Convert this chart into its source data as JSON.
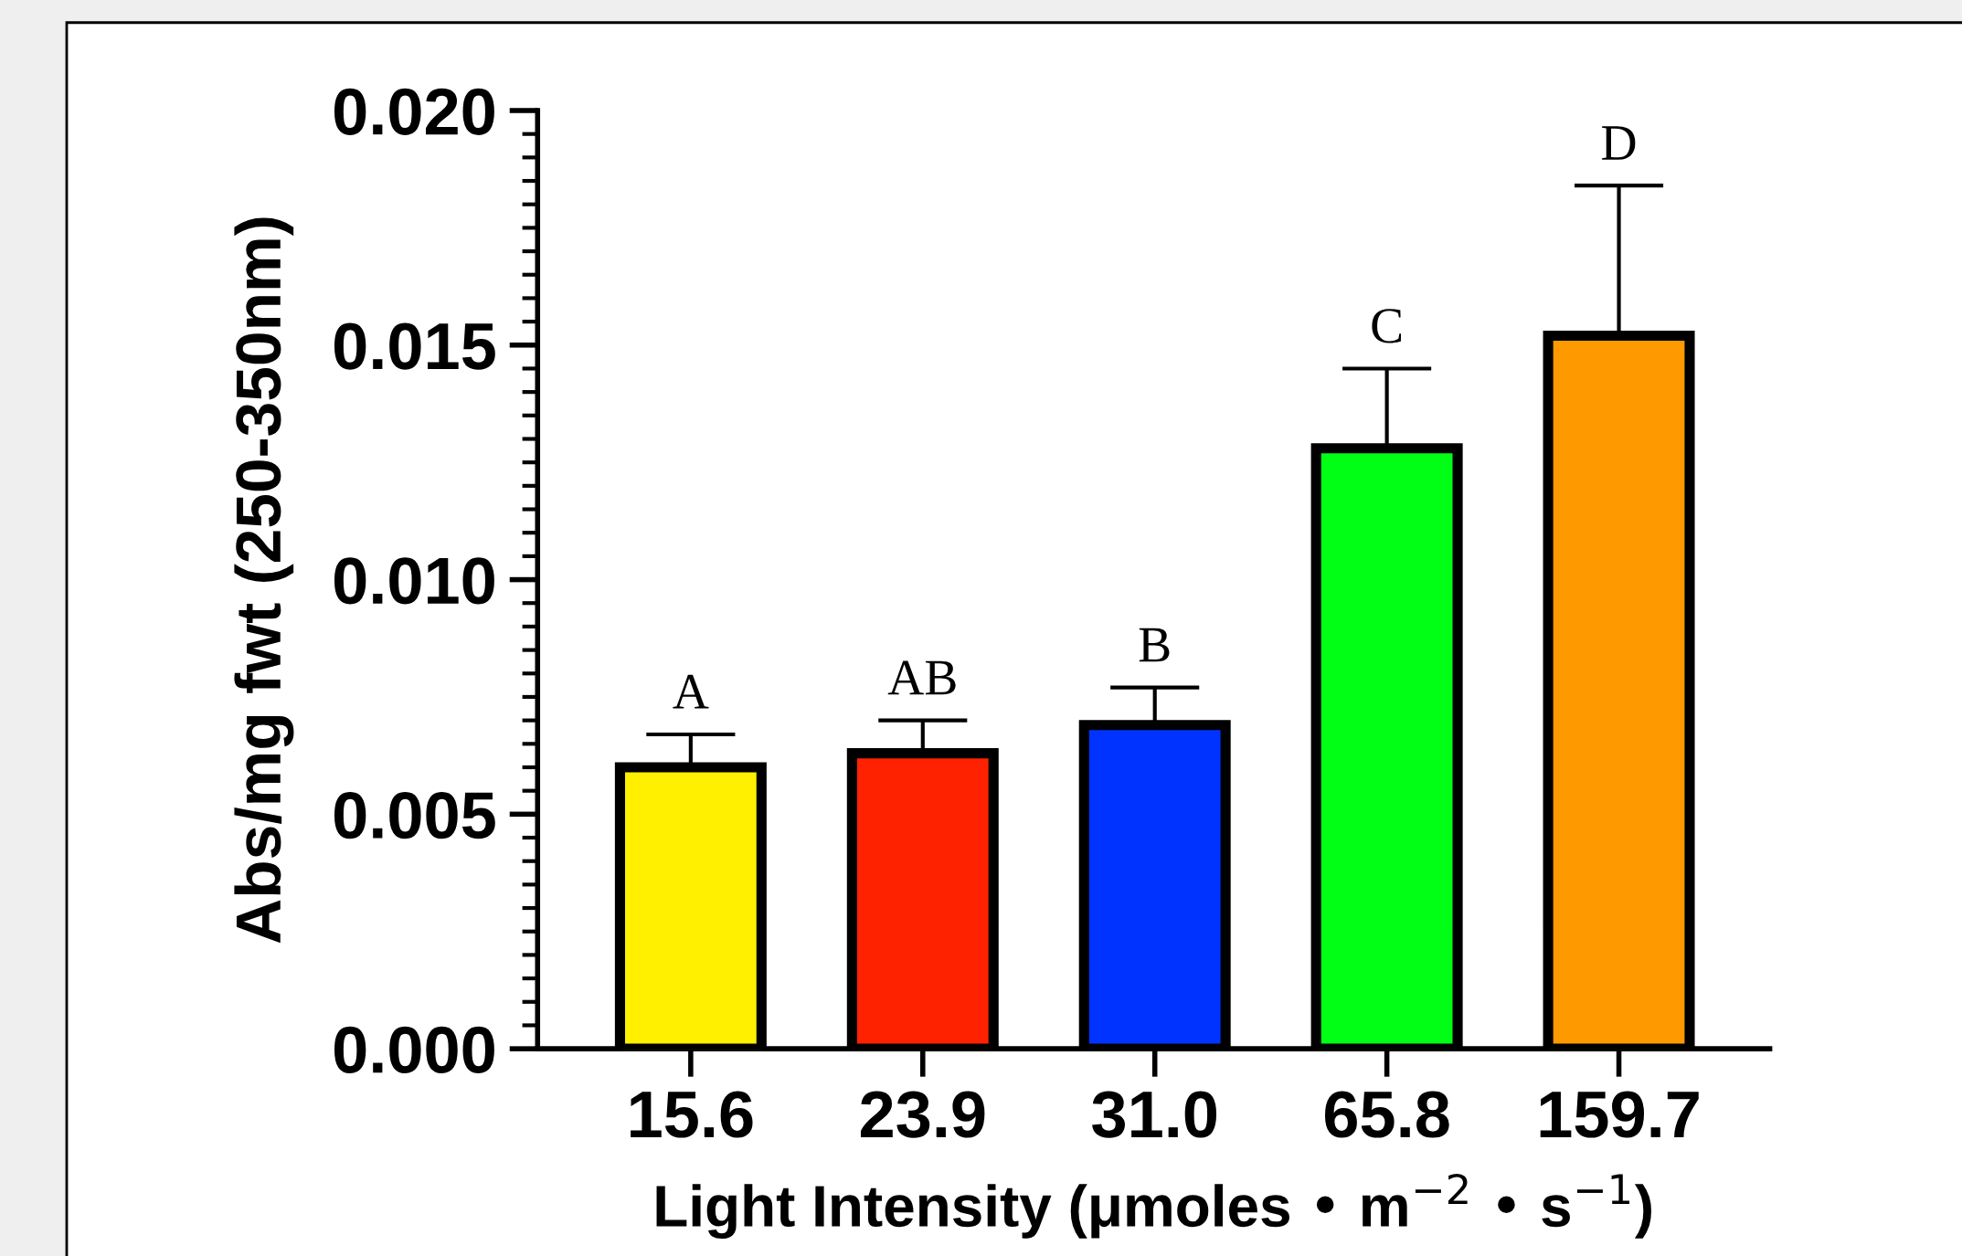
{
  "chart_data": {
    "type": "bar",
    "xlabel": "Light Intensity (μmoles • m$^{−2}$ • s$^{−1}$)",
    "ylabel": "Abs/mg fwt (250-350nm)",
    "categories": [
      "15.6",
      "23.9",
      "31.0",
      "65.8",
      "159.7"
    ],
    "values": [
      0.006,
      0.0063,
      0.0069,
      0.0128,
      0.0152
    ],
    "colors": [
      "#fff000",
      "#ff2200",
      "#0033ff",
      "#00ff14",
      "#ff9900"
    ],
    "errors": [
      [
        0.006,
        0.0067
      ],
      [
        0.0063,
        0.007
      ],
      [
        0.0069,
        0.0077
      ],
      [
        0.0128,
        0.0145
      ],
      [
        0.0152,
        0.0184
      ]
    ],
    "ylim": [
      0,
      0.02
    ],
    "yticks": [
      {
        "value": 0,
        "label": "0.000"
      },
      {
        "value": 0.005,
        "label": "0.005"
      },
      {
        "value": 0.01,
        "label": "0.010"
      },
      {
        "value": 0.015,
        "label": "0.015"
      },
      {
        "value": 0.02,
        "label": "0.020"
      }
    ],
    "annotations": [
      {
        "text": "A",
        "x": "15.6",
        "y": 0.0067
      },
      {
        "text": "AB",
        "x": "23.9",
        "y": 0.007
      },
      {
        "text": "B",
        "x": "31.0",
        "y": 0.0077
      },
      {
        "text": "C",
        "x": "65.8",
        "y": 0.0145
      },
      {
        "text": "D",
        "x": "159.7",
        "y": 0.0184
      }
    ],
    "grid": false,
    "legend": false
  }
}
